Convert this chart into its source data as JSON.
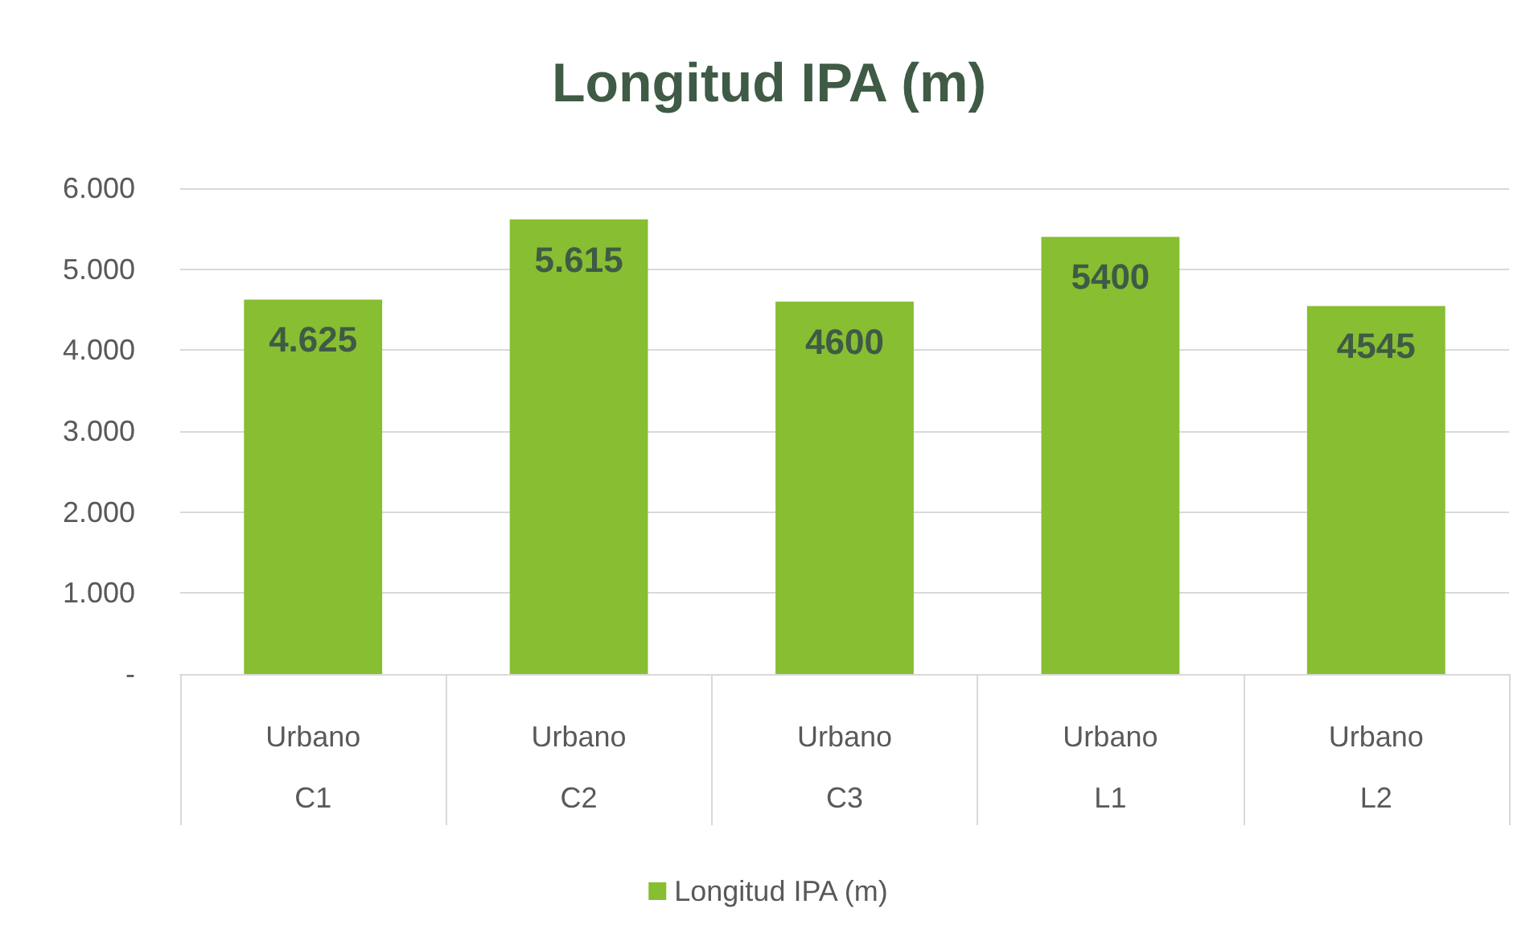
{
  "chart_data": {
    "type": "bar",
    "title": "Longitud IPA (m)",
    "categories": [
      "Urbano\nC1",
      "Urbano\nC2",
      "Urbano\nC3",
      "Urbano\nL1",
      "Urbano\nL2"
    ],
    "series": [
      {
        "name": "Longitud IPA (m)",
        "color": "#88be32",
        "values": [
          4625,
          5615,
          4600,
          5400,
          4545
        ],
        "value_labels": [
          "4.625",
          "5.615",
          "4600",
          "5400",
          "4545"
        ]
      }
    ],
    "ylim": [
      0,
      6000
    ],
    "yticks": [
      {
        "value": 0,
        "label": "-"
      },
      {
        "value": 1000,
        "label": "1.000"
      },
      {
        "value": 2000,
        "label": "2.000"
      },
      {
        "value": 3000,
        "label": "3.000"
      },
      {
        "value": 4000,
        "label": "4.000"
      },
      {
        "value": 5000,
        "label": "5.000"
      },
      {
        "value": 6000,
        "label": "6.000"
      }
    ],
    "grid": "y",
    "legend": "bottom"
  }
}
